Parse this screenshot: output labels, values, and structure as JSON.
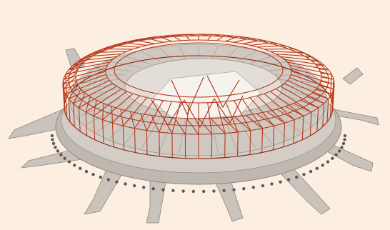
{
  "image": {
    "subject": "stadium-structural-model",
    "colors": {
      "background": "#fcefe2",
      "concrete": "#c9c3bc",
      "concrete_dark": "#9a948e",
      "concrete_light": "#e2ddd6",
      "steel": "#b83a1c",
      "steel_dark": "#8c2410",
      "pile": "#5a5a5a"
    }
  }
}
